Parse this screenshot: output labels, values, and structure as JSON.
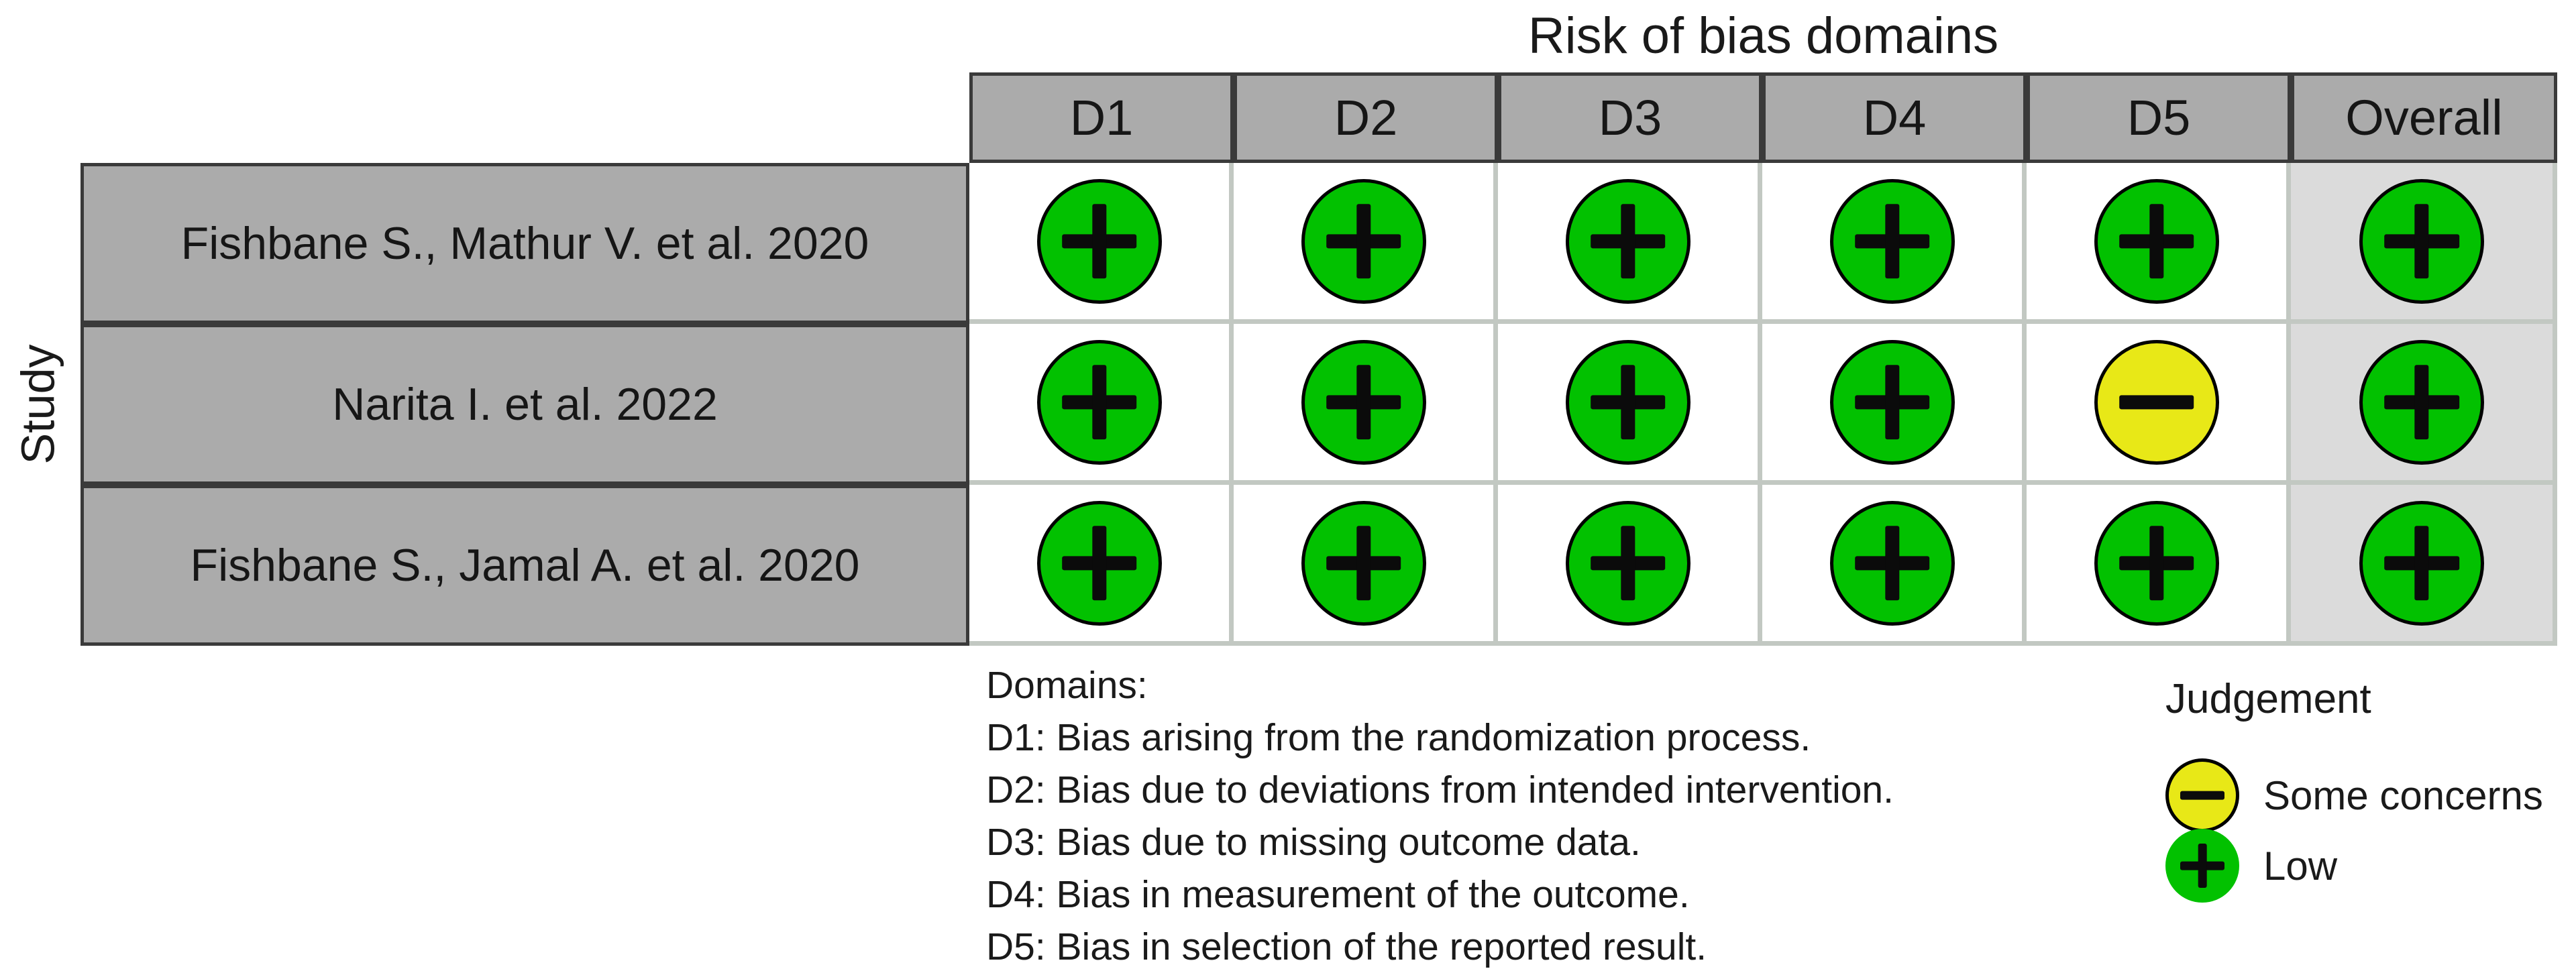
{
  "figure": {
    "title": "Risk of bias domains",
    "y_axis_label": "Study"
  },
  "columns": [
    "D1",
    "D2",
    "D3",
    "D4",
    "D5",
    "Overall"
  ],
  "rows": [
    {
      "study": "Fishbane S., Mathur V. et al. 2020",
      "judgements": [
        "low",
        "low",
        "low",
        "low",
        "low",
        "low"
      ]
    },
    {
      "study": "Narita I. et al. 2022",
      "judgements": [
        "low",
        "low",
        "low",
        "low",
        "some_concerns",
        "low"
      ]
    },
    {
      "study": "Fishbane S., Jamal A. et al. 2020",
      "judgements": [
        "low",
        "low",
        "low",
        "low",
        "low",
        "low"
      ]
    }
  ],
  "judgement_styles": {
    "low": {
      "label": "Low",
      "color": "#02C100",
      "symbol": "plus"
    },
    "some_concerns": {
      "label": "Some concerns",
      "color": "#E8E817",
      "symbol": "minus"
    }
  },
  "legend": {
    "title": "Judgement",
    "items": [
      {
        "key": "some_concerns",
        "label": "Some concerns"
      },
      {
        "key": "low",
        "label": "Low"
      }
    ]
  },
  "footnotes": {
    "heading": "Domains:",
    "items": [
      "D1: Bias arising from the randomization process.",
      "D2: Bias due to deviations from intended intervention.",
      "D3: Bias due to missing outcome data.",
      "D4: Bias in measurement of the outcome.",
      "D5: Bias in selection of the reported result."
    ]
  },
  "colors": {
    "header_fill": "#ABABAB",
    "header_border": "#3A3A3A",
    "grid_line": "#C2C8C2",
    "cell_fill": "#FFFFFF",
    "overall_column_fill": "#DBDBDB",
    "symbol": "#000000",
    "low": "#02C100",
    "some_concerns": "#E8E817"
  },
  "chart_data": {
    "type": "table",
    "title": "Risk of bias domains",
    "y_axis_label": "Study",
    "columns": [
      "D1",
      "D2",
      "D3",
      "D4",
      "D5",
      "Overall"
    ],
    "rows": [
      {
        "study": "Fishbane S., Mathur V. et al. 2020",
        "values": [
          "Low",
          "Low",
          "Low",
          "Low",
          "Low",
          "Low"
        ]
      },
      {
        "study": "Narita I. et al. 2022",
        "values": [
          "Low",
          "Low",
          "Low",
          "Low",
          "Some concerns",
          "Low"
        ]
      },
      {
        "study": "Fishbane S., Jamal A. et al. 2020",
        "values": [
          "Low",
          "Low",
          "Low",
          "Low",
          "Low",
          "Low"
        ]
      }
    ],
    "legend_title": "Judgement",
    "legend_entries": [
      {
        "symbol": "minus",
        "color": "#E8E817",
        "label": "Some concerns"
      },
      {
        "symbol": "plus",
        "color": "#02C100",
        "label": "Low"
      }
    ],
    "legend_position": "bottom-right",
    "grid": true
  }
}
